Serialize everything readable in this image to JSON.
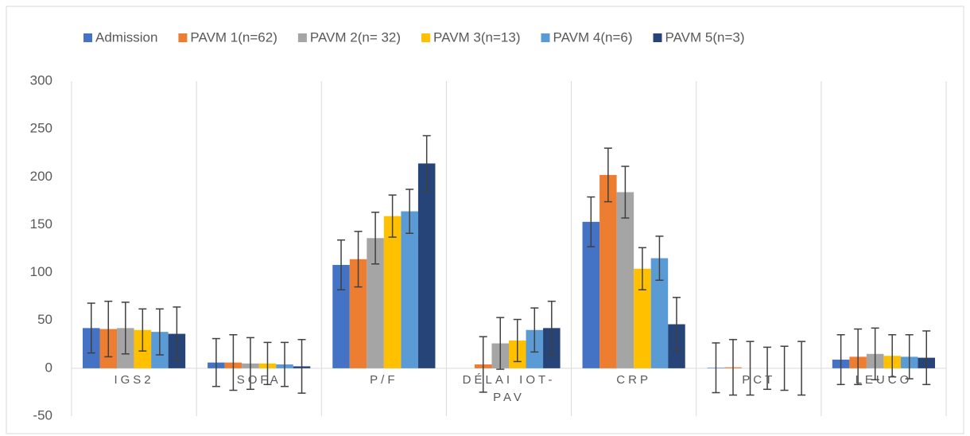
{
  "chart_data": {
    "type": "bar",
    "categories": [
      "IGS2",
      "SOFA",
      "P/F",
      "DÉLAI IOT-PAV",
      "CRP",
      "PCT",
      "LEUCO"
    ],
    "series": [
      {
        "name": "Admission",
        "color": "#4472c4",
        "values": [
          42,
          6,
          108,
          null,
          153,
          0.5,
          9
        ],
        "errors": [
          26,
          25,
          26,
          null,
          26,
          26,
          26
        ]
      },
      {
        "name": "PAVM 1(n=62)",
        "color": "#ed7d31",
        "values": [
          41,
          6,
          114,
          4,
          202,
          1,
          12
        ],
        "errors": [
          29,
          29,
          29,
          29,
          28,
          29,
          29
        ]
      },
      {
        "name": "PAVM 2(n= 32)",
        "color": "#a5a5a5",
        "values": [
          42,
          5,
          136,
          26,
          184,
          0,
          15
        ],
        "errors": [
          27,
          27,
          27,
          27,
          27,
          28,
          27
        ]
      },
      {
        "name": "PAVM 3(n=13)",
        "color": "#ffc000",
        "values": [
          40,
          5,
          159,
          29,
          104,
          0,
          13
        ],
        "errors": [
          22,
          22,
          22,
          22,
          22,
          22,
          22
        ]
      },
      {
        "name": "PAVM 4(n=6)",
        "color": "#5b9bd5",
        "values": [
          38,
          4,
          164,
          40,
          115,
          0,
          12
        ],
        "errors": [
          24,
          23,
          23,
          23,
          23,
          23,
          23
        ]
      },
      {
        "name": "PAVM 5(n=3)",
        "color": "#264478",
        "values": [
          36,
          2,
          214,
          42,
          46,
          0,
          11
        ],
        "errors": [
          28,
          28,
          29,
          28,
          28,
          28,
          28
        ]
      }
    ],
    "ylim": [
      -50,
      300
    ],
    "yticks": [
      -50,
      0,
      50,
      100,
      150,
      200,
      250,
      300
    ],
    "legend": "top",
    "grid": "vertical"
  }
}
